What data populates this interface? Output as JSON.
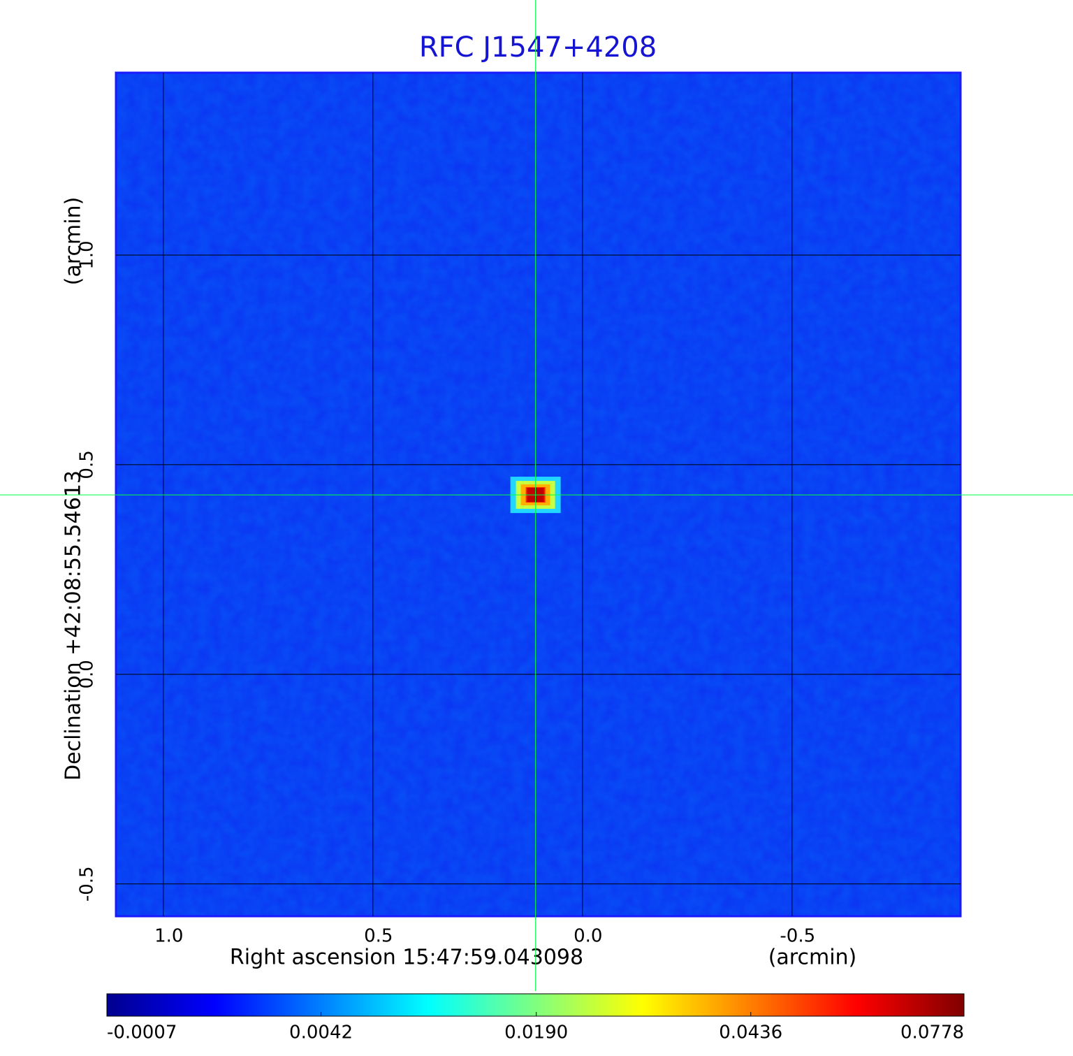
{
  "chart_data": {
    "type": "image",
    "title": "RFC J1547+4208",
    "xlabel": "Right ascension  15:47:59.043098",
    "xunit": "(arcmin)",
    "ylabel": "Declination  +42:08:55.54613",
    "yunit": "(arcmin)",
    "xlim": [
      1.113,
      -0.902
    ],
    "ylim": [
      -0.577,
      1.435
    ],
    "xticks": [
      {
        "value": 1,
        "label": "1.0"
      },
      0.5,
      {
        "value": 0,
        "label": "0.0"
      },
      -0.5
    ],
    "yticks": [
      -0.5,
      {
        "value": 0,
        "label": "0.0"
      },
      0.5,
      {
        "value": 1,
        "label": "1.0"
      }
    ],
    "grid": true,
    "source": {
      "x": 0.112,
      "y": 0.428,
      "peak": 0.0778
    },
    "crosshair": true,
    "colorbar": {
      "scale": "sqrt",
      "lim": [
        -0.0007,
        0.0778
      ],
      "ticks": [
        -0.0007,
        0.0042,
        {
          "value": 0.019,
          "label": "0.0190"
        },
        0.0436,
        0.0778
      ]
    }
  }
}
